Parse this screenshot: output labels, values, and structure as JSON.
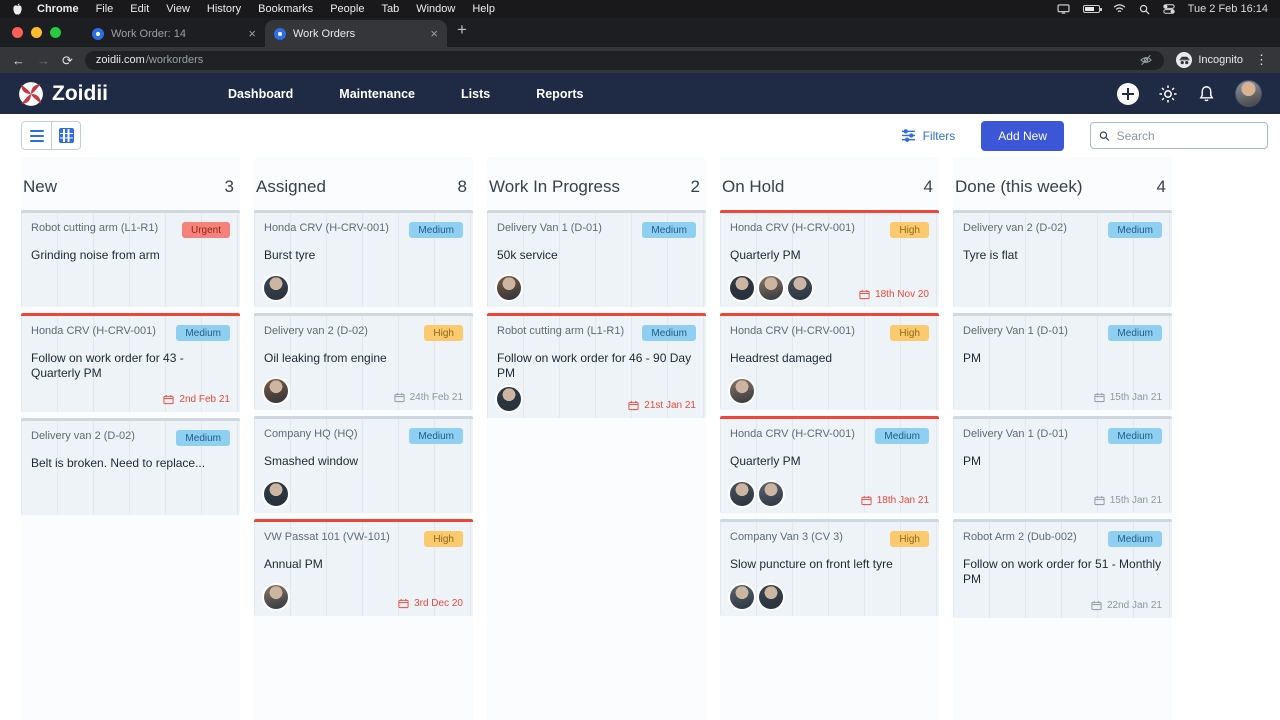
{
  "menubar": {
    "items": [
      "Chrome",
      "File",
      "Edit",
      "View",
      "History",
      "Bookmarks",
      "People",
      "Tab",
      "Window",
      "Help"
    ],
    "clock": "Tue 2 Feb 16:14"
  },
  "browser": {
    "tabs": [
      {
        "title": "Work Order: 14",
        "active": false
      },
      {
        "title": "Work Orders",
        "active": true
      }
    ],
    "url_domain": "zoidii.com",
    "url_path": "/workorders",
    "incognito_label": "Incognito"
  },
  "appbar": {
    "brand": "Zoidii",
    "nav": [
      "Dashboard",
      "Maintenance",
      "Lists",
      "Reports"
    ]
  },
  "toolbar": {
    "filters": "Filters",
    "add_new": "Add New",
    "search_placeholder": "Search"
  },
  "board": {
    "columns": [
      {
        "title": "New",
        "count": "3",
        "cards": [
          {
            "asset": "Robot cutting arm (L1-R1)",
            "priority": "Urgent",
            "description": "Grinding noise from arm",
            "avatars": 0,
            "due": "",
            "overdue": false,
            "flag": false
          },
          {
            "asset": "Honda CRV (H-CRV-001)",
            "priority": "Medium",
            "description": "Follow on work order for 43 - Quarterly PM",
            "avatars": 0,
            "due": "2nd Feb 21",
            "overdue": true,
            "flag": true
          },
          {
            "asset": "Delivery van 2 (D-02)",
            "priority": "Medium",
            "description": "Belt is broken. Need to replace...",
            "avatars": 0,
            "due": "",
            "overdue": false,
            "flag": false
          }
        ]
      },
      {
        "title": "Assigned",
        "count": "8",
        "cards": [
          {
            "asset": "Honda CRV (H-CRV-001)",
            "priority": "Medium",
            "description": "Burst tyre",
            "avatars": 1,
            "due": "",
            "overdue": false,
            "flag": false
          },
          {
            "asset": "Delivery van 2 (D-02)",
            "priority": "High",
            "description": "Oil leaking from engine",
            "avatars": 1,
            "due": "24th Feb 21",
            "overdue": false,
            "flag": false
          },
          {
            "asset": "Company HQ (HQ)",
            "priority": "Medium",
            "description": "Smashed window",
            "avatars": 1,
            "due": "",
            "overdue": false,
            "flag": false
          },
          {
            "asset": "VW Passat 101 (VW-101)",
            "priority": "High",
            "description": "Annual PM",
            "avatars": 1,
            "due": "3rd Dec 20",
            "overdue": true,
            "flag": true
          }
        ]
      },
      {
        "title": "Work In Progress",
        "count": "2",
        "cards": [
          {
            "asset": "Delivery Van 1 (D-01)",
            "priority": "Medium",
            "description": "50k service",
            "avatars": 1,
            "due": "",
            "overdue": false,
            "flag": false
          },
          {
            "asset": "Robot cutting arm (L1-R1)",
            "priority": "Medium",
            "description": "Follow on work order for 46 - 90 Day PM",
            "avatars": 1,
            "due": "21st Jan 21",
            "overdue": true,
            "flag": true
          }
        ]
      },
      {
        "title": "On Hold",
        "count": "4",
        "cards": [
          {
            "asset": "Honda CRV (H-CRV-001)",
            "priority": "High",
            "description": "Quarterly PM",
            "avatars": 3,
            "due": "18th Nov 20",
            "overdue": true,
            "flag": true
          },
          {
            "asset": "Honda CRV (H-CRV-001)",
            "priority": "High",
            "description": "Headrest damaged",
            "avatars": 1,
            "due": "",
            "overdue": false,
            "flag": true
          },
          {
            "asset": "Honda CRV (H-CRV-001)",
            "priority": "Medium",
            "description": "Quarterly PM",
            "avatars": 2,
            "due": "18th Jan 21",
            "overdue": true,
            "flag": true
          },
          {
            "asset": "Company Van 3 (CV 3)",
            "priority": "High",
            "description": "Slow puncture on front left tyre",
            "avatars": 2,
            "due": "",
            "overdue": false,
            "flag": false
          }
        ]
      },
      {
        "title": "Done (this week)",
        "count": "4",
        "cards": [
          {
            "asset": "Delivery van 2 (D-02)",
            "priority": "Medium",
            "description": "Tyre is flat",
            "avatars": 0,
            "due": "",
            "overdue": false,
            "flag": false
          },
          {
            "asset": "Delivery Van 1 (D-01)",
            "priority": "Medium",
            "description": "PM",
            "avatars": 0,
            "due": "15th Jan 21",
            "overdue": false,
            "flag": false
          },
          {
            "asset": "Delivery Van 1 (D-01)",
            "priority": "Medium",
            "description": "PM",
            "avatars": 0,
            "due": "15th Jan 21",
            "overdue": false,
            "flag": false
          },
          {
            "asset": "Robot Arm 2 (Dub-002)",
            "priority": "Medium",
            "description": "Follow on work order for 51 - Monthly PM",
            "avatars": 0,
            "due": "22nd Jan 21",
            "overdue": false,
            "flag": false
          }
        ]
      }
    ]
  },
  "colors": {
    "appbar_bg": "#1f2b44",
    "accent_blue": "#2e6de4",
    "add_new_bg": "#3b57d8",
    "overdue": "#e8483d",
    "flag_border": "#ef4438",
    "card_border": "#cfd7df",
    "priority": {
      "Urgent": {
        "bg": "#f5837b",
        "fg": "#8f241a"
      },
      "Medium": {
        "bg": "#8fd0f2",
        "fg": "#1d5d85"
      },
      "High": {
        "bg": "#fbca6e",
        "fg": "#8d6a1a"
      }
    },
    "avatar_palette": [
      "#5b6670",
      "#3c4652",
      "#7a5a42",
      "#2f3a46",
      "#8a7766",
      "#49545f"
    ]
  }
}
